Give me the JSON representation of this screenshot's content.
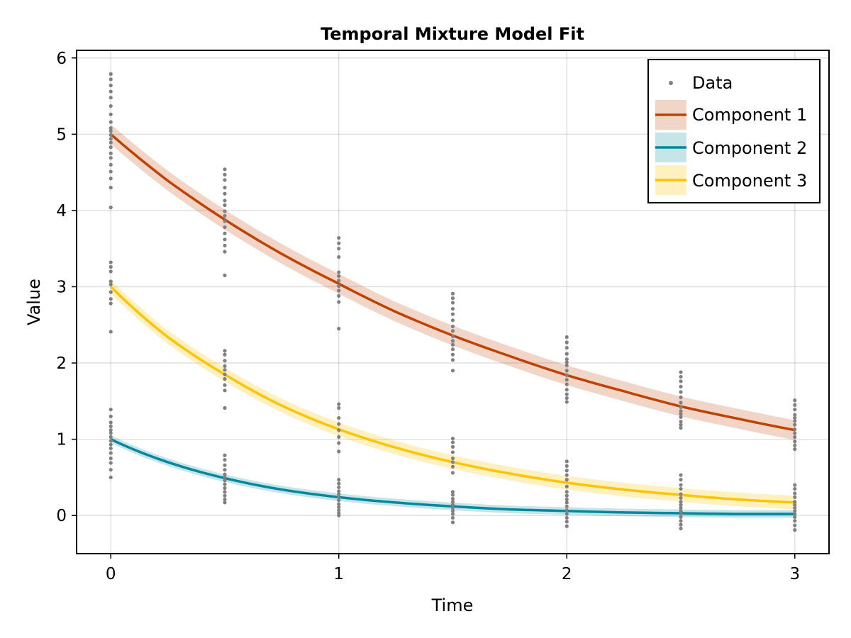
{
  "chart_data": {
    "type": "line",
    "title": "Temporal Mixture Model Fit",
    "xlabel": "Time",
    "ylabel": "Value",
    "xlim": [
      -0.15,
      3.15
    ],
    "ylim": [
      -0.5,
      6.1
    ],
    "xticks": [
      0,
      1,
      2,
      3
    ],
    "yticks": [
      0,
      1,
      2,
      3,
      4,
      5,
      6
    ],
    "grid": true,
    "legend_position": "top-right",
    "colors": {
      "data": "#808080",
      "component_1": "#c14200",
      "component_2": "#00889b",
      "component_3": "#ffc400"
    },
    "legend": {
      "data_label": "Data",
      "items": [
        "Component 1",
        "Component 2",
        "Component 3"
      ]
    },
    "series": [
      {
        "name": "Component 1",
        "color": "#c14200",
        "band_halfwidth": 0.13,
        "x": [
          0,
          0.25,
          0.5,
          0.75,
          1,
          1.25,
          1.5,
          1.75,
          2,
          2.25,
          2.5,
          2.75,
          3
        ],
        "y": [
          5.0,
          4.39,
          3.88,
          3.43,
          3.04,
          2.67,
          2.36,
          2.09,
          1.84,
          1.63,
          1.43,
          1.27,
          1.12
        ]
      },
      {
        "name": "Component 2",
        "color": "#00889b",
        "band_halfwidth": 0.05,
        "x": [
          0,
          0.25,
          0.5,
          0.75,
          1,
          1.25,
          1.5,
          1.75,
          2,
          2.25,
          2.5,
          2.75,
          3
        ],
        "y": [
          1.0,
          0.7,
          0.49,
          0.34,
          0.24,
          0.17,
          0.12,
          0.08,
          0.06,
          0.04,
          0.03,
          0.02,
          0.02
        ]
      },
      {
        "name": "Component 3",
        "color": "#ffc400",
        "band_halfwidth": 0.09,
        "x": [
          0,
          0.25,
          0.5,
          0.75,
          1,
          1.25,
          1.5,
          1.75,
          2,
          2.25,
          2.5,
          2.75,
          3
        ],
        "y": [
          3.0,
          2.34,
          1.85,
          1.44,
          1.13,
          0.89,
          0.7,
          0.55,
          0.43,
          0.34,
          0.27,
          0.21,
          0.17
        ]
      }
    ],
    "data_points": {
      "name": "Data",
      "x": [
        0,
        0.5,
        1,
        1.5,
        2,
        2.5,
        3
      ],
      "groups": [
        [
          [
            5.79,
            5.72,
            5.64,
            5.56,
            5.48,
            5.37,
            5.26,
            5.16,
            5.08,
            5.04,
            4.99,
            4.94,
            4.89,
            4.83,
            4.75,
            4.69,
            4.6,
            4.51,
            4.42,
            4.3,
            4.04
          ],
          [
            3.32,
            3.26,
            3.2,
            3.07,
            3.03,
            2.93,
            2.84,
            2.78,
            2.41
          ],
          [
            1.39,
            1.3,
            1.22,
            1.17,
            1.12,
            1.08,
            1.03,
            0.98,
            0.93,
            0.88,
            0.82,
            0.75,
            0.69,
            0.6,
            0.5
          ]
        ],
        [
          [
            4.54,
            4.47,
            4.4,
            4.3,
            4.22,
            4.13,
            4.07,
            3.99,
            3.93,
            3.86,
            3.78,
            3.7,
            3.62,
            3.54,
            3.46,
            3.15
          ],
          [
            2.16,
            2.11,
            2.03,
            1.96,
            1.91,
            1.85,
            1.79,
            1.71,
            1.64,
            1.41
          ],
          [
            0.79,
            0.73,
            0.66,
            0.6,
            0.54,
            0.5,
            0.46,
            0.41,
            0.36,
            0.31,
            0.26,
            0.21,
            0.17
          ]
        ],
        [
          [
            3.64,
            3.57,
            3.5,
            3.39,
            3.19,
            3.14,
            3.08,
            3.01,
            2.95,
            2.88,
            2.8,
            2.45
          ],
          [
            1.46,
            1.41,
            1.28,
            1.2,
            1.12,
            1.03,
            0.95,
            0.84
          ],
          [
            0.47,
            0.42,
            0.37,
            0.32,
            0.28,
            0.24,
            0.2,
            0.15,
            0.11,
            0.07,
            0.03,
            0.0
          ]
        ],
        [
          [
            2.91,
            2.85,
            2.79,
            2.71,
            2.64,
            2.56,
            2.48,
            2.42,
            2.35,
            2.29,
            2.24,
            2.18,
            2.11,
            2.04,
            1.9
          ],
          [
            1.01,
            0.96,
            0.9,
            0.83,
            0.75,
            0.7,
            0.64,
            0.56
          ],
          [
            0.31,
            0.27,
            0.22,
            0.18,
            0.14,
            0.1,
            0.06,
            0.02,
            -0.03,
            -0.09
          ]
        ],
        [
          [
            2.34,
            2.27,
            2.2,
            2.12,
            2.05,
            2.01,
            1.97,
            1.9,
            1.84,
            1.78,
            1.72,
            1.65,
            1.59,
            1.54,
            1.49
          ],
          [
            0.71,
            0.65,
            0.59,
            0.53,
            0.47,
            0.38
          ],
          [
            0.31,
            0.26,
            0.21,
            0.17,
            0.12,
            0.07,
            0.02,
            -0.03,
            -0.08,
            -0.14
          ]
        ],
        [
          [
            1.88,
            1.82,
            1.76,
            1.69,
            1.62,
            1.55,
            1.48,
            1.42,
            1.37,
            1.33,
            1.29,
            1.23,
            1.19,
            1.15
          ],
          [
            0.53,
            0.47,
            0.4,
            0.35
          ],
          [
            0.28,
            0.23,
            0.18,
            0.14,
            0.1,
            0.06,
            0.02,
            -0.02,
            -0.07,
            -0.12,
            -0.17
          ]
        ],
        [
          [
            1.51,
            1.45,
            1.39,
            1.32,
            1.28,
            1.24,
            1.19,
            1.13,
            1.08,
            1.03,
            0.97,
            0.92,
            0.87
          ],
          [
            0.4,
            0.35,
            0.29,
            0.24
          ],
          [
            0.18,
            0.14,
            0.1,
            0.06,
            0.02,
            -0.02,
            -0.07,
            -0.13,
            -0.19
          ]
        ]
      ]
    }
  }
}
